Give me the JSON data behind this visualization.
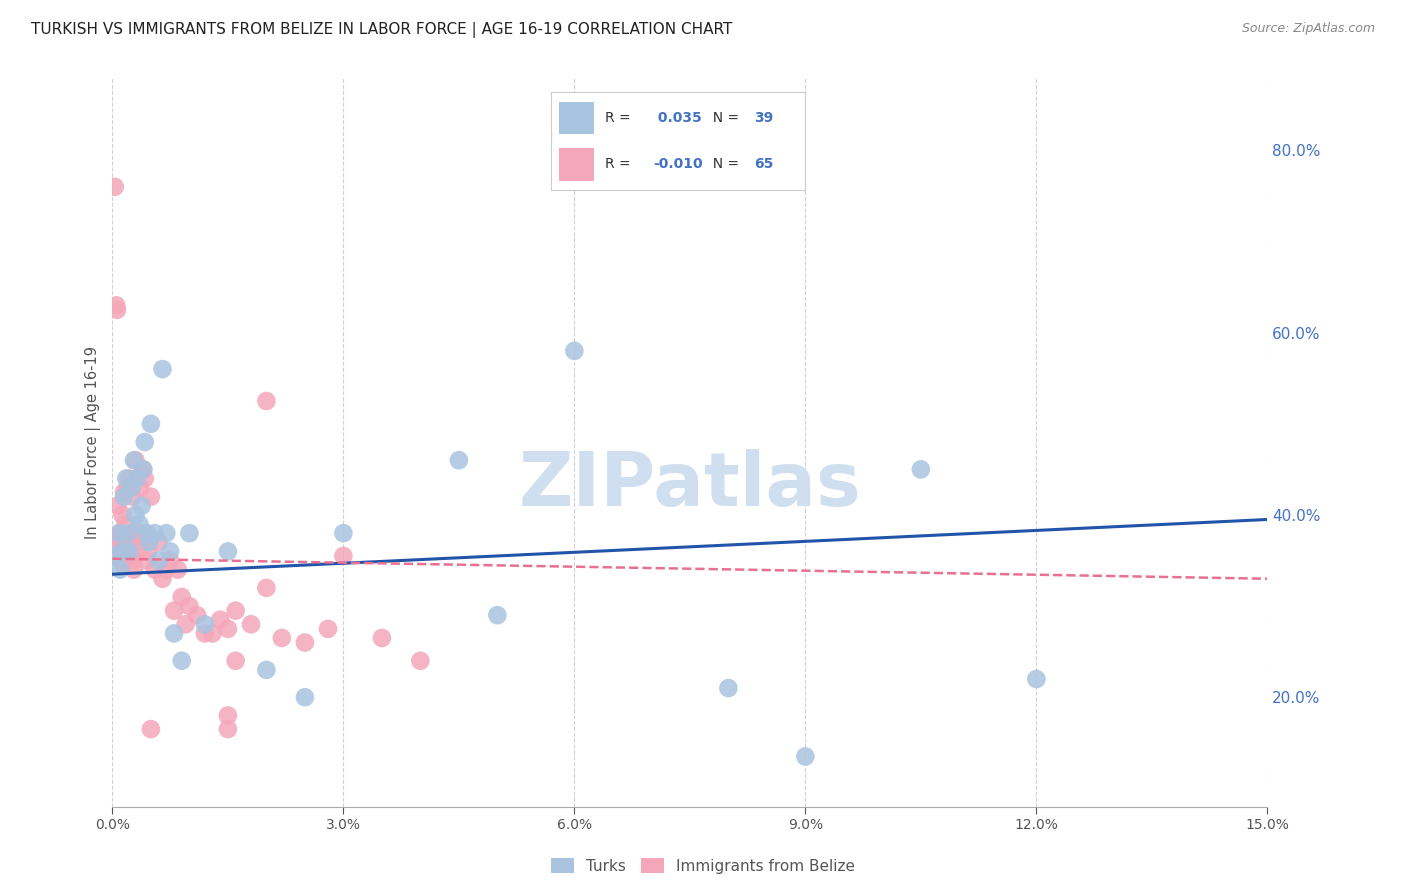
{
  "title": "TURKISH VS IMMIGRANTS FROM BELIZE IN LABOR FORCE | AGE 16-19 CORRELATION CHART",
  "source": "Source: ZipAtlas.com",
  "xlabel_vals": [
    0.0,
    0.03,
    0.06,
    0.09,
    0.12,
    0.15
  ],
  "ylabel_vals": [
    0.2,
    0.4,
    0.6,
    0.8
  ],
  "ylabel_label": "In Labor Force | Age 16-19",
  "xmin": 0.0,
  "xmax": 0.15,
  "ymin": 0.08,
  "ymax": 0.88,
  "turks_r": 0.035,
  "turks_n": 39,
  "belize_r": -0.01,
  "belize_n": 65,
  "turks_color": "#a8c4e0",
  "belize_color": "#f4a7b9",
  "turks_line_color": "#2255aa",
  "belize_line_color": "#e87090",
  "legend_label_turks": "Turks",
  "legend_label_belize": "Immigrants from Belize",
  "turks_scatter_x": [
    0.0005,
    0.0008,
    0.001,
    0.0012,
    0.0015,
    0.0018,
    0.002,
    0.0022,
    0.0025,
    0.0028,
    0.003,
    0.0032,
    0.0035,
    0.0038,
    0.004,
    0.0042,
    0.0045,
    0.0048,
    0.005,
    0.0055,
    0.006,
    0.0065,
    0.007,
    0.0075,
    0.008,
    0.009,
    0.01,
    0.012,
    0.015,
    0.02,
    0.025,
    0.03,
    0.045,
    0.05,
    0.06,
    0.08,
    0.09,
    0.105,
    0.12
  ],
  "turks_scatter_y": [
    0.355,
    0.38,
    0.34,
    0.36,
    0.42,
    0.44,
    0.38,
    0.36,
    0.43,
    0.46,
    0.4,
    0.44,
    0.39,
    0.41,
    0.45,
    0.48,
    0.38,
    0.37,
    0.5,
    0.38,
    0.35,
    0.56,
    0.38,
    0.36,
    0.27,
    0.24,
    0.38,
    0.28,
    0.36,
    0.23,
    0.2,
    0.38,
    0.46,
    0.29,
    0.58,
    0.21,
    0.135,
    0.45,
    0.22
  ],
  "belize_scatter_x": [
    0.0003,
    0.0005,
    0.0006,
    0.0007,
    0.0008,
    0.0009,
    0.001,
    0.0011,
    0.0012,
    0.0013,
    0.0014,
    0.0015,
    0.0016,
    0.0017,
    0.0018,
    0.0019,
    0.002,
    0.0021,
    0.0022,
    0.0023,
    0.0024,
    0.0025,
    0.0026,
    0.0027,
    0.0028,
    0.003,
    0.0032,
    0.0034,
    0.0036,
    0.0038,
    0.004,
    0.0042,
    0.0044,
    0.0046,
    0.0048,
    0.005,
    0.0055,
    0.006,
    0.0065,
    0.007,
    0.0075,
    0.008,
    0.0085,
    0.009,
    0.0095,
    0.01,
    0.011,
    0.012,
    0.013,
    0.014,
    0.015,
    0.016,
    0.018,
    0.02,
    0.022,
    0.025,
    0.028,
    0.03,
    0.035,
    0.04,
    0.005,
    0.015,
    0.02,
    0.015,
    0.016
  ],
  "belize_scatter_y": [
    0.76,
    0.63,
    0.625,
    0.41,
    0.375,
    0.365,
    0.38,
    0.35,
    0.365,
    0.4,
    0.345,
    0.425,
    0.36,
    0.39,
    0.375,
    0.37,
    0.43,
    0.44,
    0.37,
    0.36,
    0.355,
    0.38,
    0.42,
    0.35,
    0.34,
    0.46,
    0.375,
    0.38,
    0.43,
    0.37,
    0.45,
    0.44,
    0.35,
    0.36,
    0.375,
    0.42,
    0.34,
    0.37,
    0.33,
    0.34,
    0.35,
    0.295,
    0.34,
    0.31,
    0.28,
    0.3,
    0.29,
    0.27,
    0.27,
    0.285,
    0.275,
    0.295,
    0.28,
    0.32,
    0.265,
    0.26,
    0.275,
    0.355,
    0.265,
    0.24,
    0.165,
    0.18,
    0.525,
    0.165,
    0.24
  ],
  "watermark": "ZIPatlas",
  "watermark_color": "#d0dff0",
  "background_color": "#ffffff",
  "grid_color": "#cccccc"
}
